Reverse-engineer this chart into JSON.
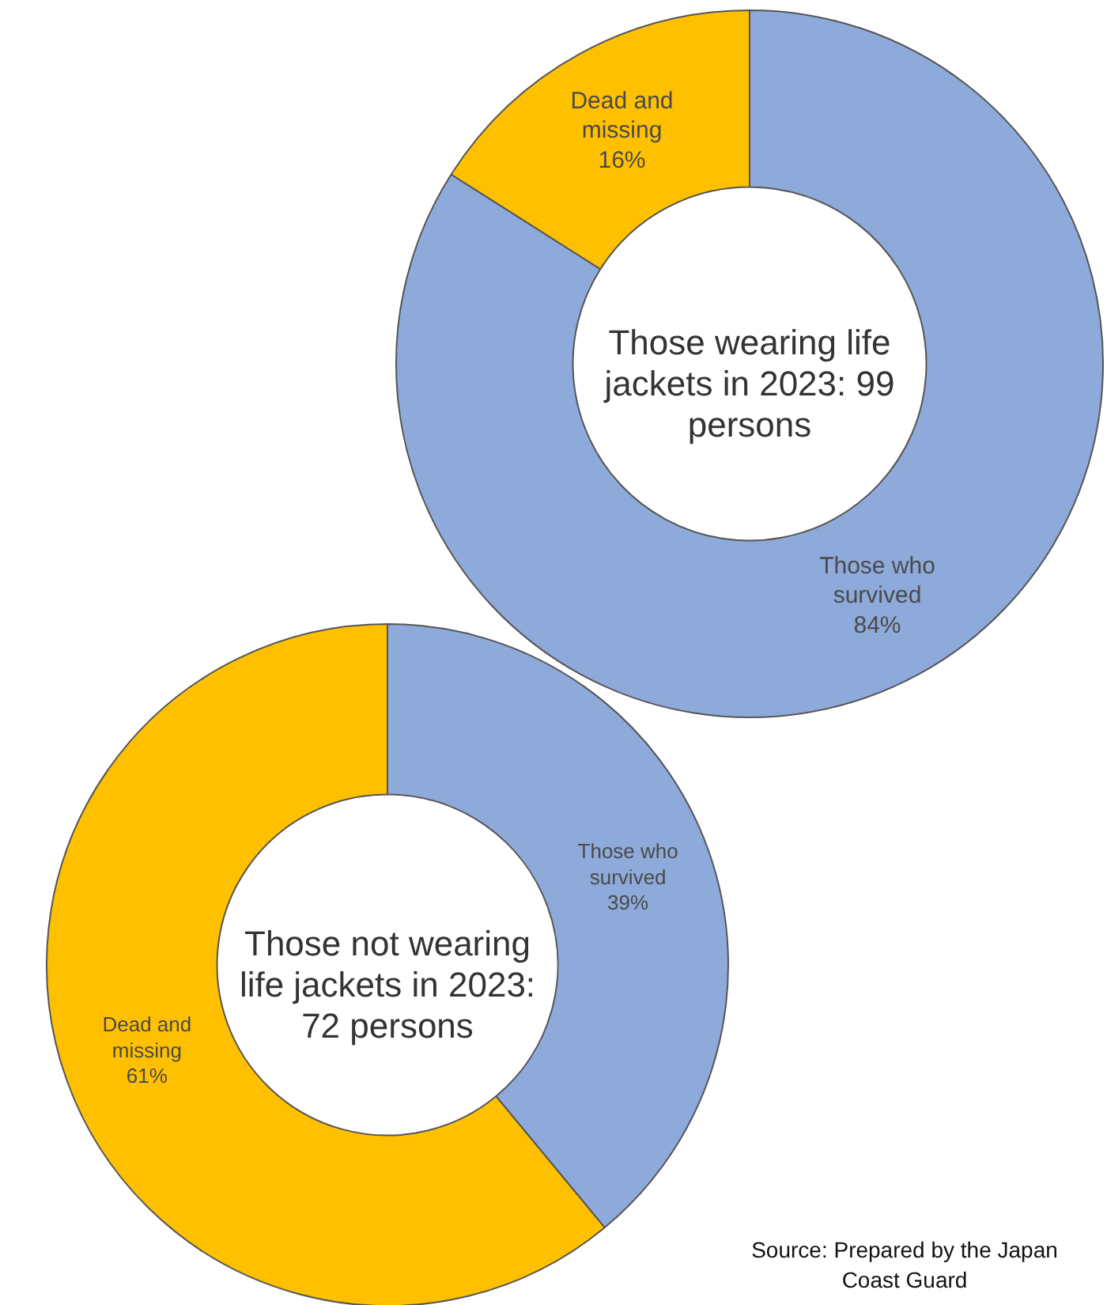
{
  "chart_data": [
    {
      "type": "donut",
      "categories": [
        "Those who survived",
        "Dead and missing"
      ],
      "values": [
        84,
        16
      ],
      "colors": [
        "#8eaadb",
        "#ffc000"
      ],
      "value_labels": [
        "84%",
        "16%"
      ],
      "annotations": [
        "Those wearing life jackets in 2023: 99 persons"
      ]
    },
    {
      "type": "donut",
      "categories": [
        "Those who survived",
        "Dead and missing"
      ],
      "values": [
        39,
        61
      ],
      "colors": [
        "#8eaadb",
        "#ffc000"
      ],
      "value_labels": [
        "39%",
        "61%"
      ],
      "annotations": [
        "Those not wearing life jackets in 2023: 72 persons",
        "Source: Prepared by the Japan Coast Guard"
      ]
    }
  ]
}
